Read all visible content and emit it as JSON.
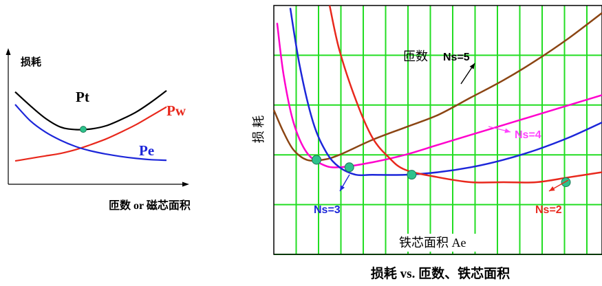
{
  "figure_caption": "损耗 vs. 匝数、铁芯面积",
  "chart_data": [
    {
      "type": "line",
      "panel": "left",
      "ylabel": "损耗",
      "xlabel": "匝数 or 磁芯面积",
      "grid": false,
      "series": [
        {
          "name": "Pt",
          "color": "#000000",
          "x": [
            0,
            1,
            2,
            3,
            4,
            5,
            6,
            7,
            8,
            9,
            10
          ],
          "y": [
            6.7,
            5.6,
            4.6,
            3.9,
            3.7,
            3.75,
            4.0,
            4.5,
            5.1,
            5.9,
            6.8
          ]
        },
        {
          "name": "Pw",
          "color": "#e8281c",
          "x": [
            0,
            1,
            2,
            3,
            4,
            5,
            6,
            7,
            8,
            9,
            10
          ],
          "y": [
            1.2,
            1.4,
            1.6,
            1.8,
            2.1,
            2.5,
            2.95,
            3.5,
            4.1,
            4.8,
            5.5
          ]
        },
        {
          "name": "Pe",
          "color": "#1c26d9",
          "x": [
            0,
            1,
            2,
            3,
            4,
            5,
            6,
            7,
            8,
            9,
            10
          ],
          "y": [
            5.7,
            4.4,
            3.5,
            2.85,
            2.35,
            2.0,
            1.75,
            1.55,
            1.4,
            1.3,
            1.25
          ]
        }
      ],
      "markers": [
        {
          "x": 4.5,
          "y": 3.72,
          "color": "#2ec28c"
        }
      ]
    },
    {
      "type": "line",
      "panel": "right",
      "ylabel": "损 耗",
      "xlabel": "铁芯面积 Ae",
      "xlim": [
        0,
        10
      ],
      "ylim": [
        0,
        10
      ],
      "grid": true,
      "grid_color": "#22dd22",
      "annotations": [
        {
          "text": "匝数",
          "x": 5.2,
          "y": 8.0
        },
        {
          "text": "Ns=5",
          "x": 6.8,
          "y": 8.0,
          "color": "#000000"
        },
        {
          "text": "Ns=4",
          "x": 9.3,
          "y": 4.7,
          "color": "#ff44ff"
        },
        {
          "text": "Ns=3",
          "x": 1.1,
          "y": 1.9,
          "color": "#1c26d9"
        },
        {
          "text": "Ns=2",
          "x": 8.5,
          "y": 1.9,
          "color": "#e8281c"
        }
      ],
      "series": [
        {
          "name": "Ns=5",
          "color": "#8b4513",
          "x": [
            0,
            0.3,
            0.6,
            1.0,
            1.5,
            2.0,
            3.0,
            4.0,
            5.0,
            6.0,
            7.0,
            8.0,
            9.0,
            10.0
          ],
          "y": [
            5.8,
            4.9,
            4.2,
            3.8,
            3.8,
            4.0,
            4.6,
            5.1,
            5.6,
            6.3,
            7.0,
            7.8,
            8.7,
            9.7
          ]
        },
        {
          "name": "Ns=4",
          "color": "#ff00cc",
          "x": [
            0.1,
            0.3,
            0.6,
            1.0,
            1.5,
            2.0,
            3.0,
            4.0,
            5.0,
            6.0,
            7.0,
            8.0,
            9.0,
            10.0
          ],
          "y": [
            9.3,
            7.2,
            5.3,
            4.1,
            3.6,
            3.5,
            3.7,
            4.0,
            4.4,
            4.8,
            5.2,
            5.6,
            6.0,
            6.4
          ]
        },
        {
          "name": "Ns=3",
          "color": "#1c26d9",
          "x": [
            0.5,
            0.8,
            1.2,
            1.6,
            2.0,
            2.5,
            3.0,
            4.0,
            5.0,
            6.0,
            7.0,
            8.0,
            9.0,
            10.0
          ],
          "y": [
            9.9,
            7.5,
            5.3,
            4.1,
            3.5,
            3.2,
            3.2,
            3.2,
            3.3,
            3.5,
            3.8,
            4.2,
            4.7,
            5.3
          ]
        },
        {
          "name": "Ns=2",
          "color": "#e8281c",
          "x": [
            1.7,
            2.0,
            2.5,
            3.0,
            3.5,
            4.0,
            5.0,
            6.0,
            7.0,
            8.0,
            9.0,
            10.0
          ],
          "y": [
            10.0,
            8.2,
            6.2,
            4.7,
            3.9,
            3.4,
            3.1,
            2.9,
            2.9,
            2.9,
            3.1,
            3.3
          ]
        }
      ],
      "markers": [
        {
          "x": 1.3,
          "y": 3.8,
          "color": "#2ec28c"
        },
        {
          "x": 2.3,
          "y": 3.5,
          "color": "#2ec28c"
        },
        {
          "x": 4.2,
          "y": 3.2,
          "color": "#2ec28c"
        },
        {
          "x": 8.9,
          "y": 2.9,
          "color": "#2ec28c"
        }
      ]
    }
  ]
}
